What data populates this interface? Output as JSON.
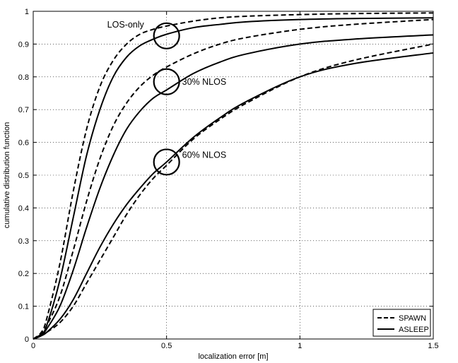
{
  "chart_data": {
    "type": "line",
    "title": "",
    "xlabel": "localization error [m]",
    "ylabel": "cumulative distribution function",
    "xlim": [
      0,
      1.5
    ],
    "ylim": [
      0,
      1
    ],
    "xticks": [
      0,
      0.5,
      1,
      1.5
    ],
    "xtick_labels": [
      "0",
      "0.5",
      "1",
      "1.5"
    ],
    "yticks": [
      0,
      0.1,
      0.2,
      0.3,
      0.4,
      0.5,
      0.6,
      0.7,
      0.8,
      0.9,
      1
    ],
    "ytick_labels": [
      "0",
      "0.1",
      "0.2",
      "0.3",
      "0.4",
      "0.5",
      "0.6",
      "0.7",
      "0.8",
      "0.9",
      "1"
    ],
    "grid": true,
    "legend": {
      "position": "bottom-right",
      "entries": [
        {
          "label": "SPAWN",
          "style": "dashed"
        },
        {
          "label": "ASLEEP",
          "style": "solid"
        }
      ]
    },
    "annotations": [
      {
        "text": "LOS-only",
        "circle_at": [
          0.5,
          0.925
        ]
      },
      {
        "text": "30% NLOS",
        "circle_at": [
          0.5,
          0.785
        ]
      },
      {
        "text": "60% NLOS",
        "circle_at": [
          0.5,
          0.54
        ]
      }
    ],
    "series": [
      {
        "group": "LOS-only",
        "style": "dashed",
        "x": [
          0,
          0.03,
          0.05,
          0.1,
          0.15,
          0.2,
          0.25,
          0.3,
          0.35,
          0.4,
          0.45,
          0.5,
          0.6,
          0.7,
          0.8,
          1.0,
          1.2,
          1.5
        ],
        "y": [
          0,
          0.02,
          0.06,
          0.23,
          0.45,
          0.64,
          0.77,
          0.85,
          0.9,
          0.93,
          0.945,
          0.955,
          0.97,
          0.98,
          0.985,
          0.99,
          0.993,
          0.995
        ]
      },
      {
        "group": "LOS-only",
        "style": "solid",
        "x": [
          0,
          0.03,
          0.05,
          0.1,
          0.15,
          0.2,
          0.25,
          0.3,
          0.35,
          0.4,
          0.45,
          0.5,
          0.6,
          0.7,
          0.8,
          1.0,
          1.2,
          1.5
        ],
        "y": [
          0,
          0.015,
          0.04,
          0.18,
          0.37,
          0.56,
          0.7,
          0.8,
          0.86,
          0.895,
          0.915,
          0.93,
          0.95,
          0.96,
          0.968,
          0.975,
          0.978,
          0.98
        ]
      },
      {
        "group": "30% NLOS",
        "style": "dashed",
        "x": [
          0,
          0.03,
          0.05,
          0.1,
          0.15,
          0.2,
          0.25,
          0.3,
          0.35,
          0.4,
          0.45,
          0.5,
          0.6,
          0.7,
          0.8,
          1.0,
          1.2,
          1.5
        ],
        "y": [
          0,
          0.015,
          0.04,
          0.13,
          0.27,
          0.42,
          0.55,
          0.65,
          0.72,
          0.77,
          0.805,
          0.83,
          0.87,
          0.9,
          0.92,
          0.945,
          0.96,
          0.975
        ]
      },
      {
        "group": "30% NLOS",
        "style": "solid",
        "x": [
          0,
          0.03,
          0.05,
          0.1,
          0.15,
          0.2,
          0.25,
          0.3,
          0.35,
          0.4,
          0.45,
          0.5,
          0.6,
          0.7,
          0.8,
          1.0,
          1.2,
          1.5
        ],
        "y": [
          0,
          0.01,
          0.03,
          0.1,
          0.21,
          0.34,
          0.46,
          0.56,
          0.64,
          0.695,
          0.735,
          0.76,
          0.81,
          0.845,
          0.87,
          0.9,
          0.915,
          0.928
        ]
      },
      {
        "group": "60% NLOS",
        "style": "dashed",
        "x": [
          0,
          0.03,
          0.05,
          0.1,
          0.15,
          0.2,
          0.25,
          0.3,
          0.35,
          0.4,
          0.45,
          0.5,
          0.6,
          0.7,
          0.8,
          1.0,
          1.2,
          1.5
        ],
        "y": [
          0,
          0.01,
          0.02,
          0.05,
          0.1,
          0.17,
          0.24,
          0.31,
          0.38,
          0.44,
          0.49,
          0.53,
          0.61,
          0.67,
          0.72,
          0.8,
          0.85,
          0.9
        ]
      },
      {
        "group": "60% NLOS",
        "style": "solid",
        "x": [
          0,
          0.03,
          0.05,
          0.1,
          0.15,
          0.2,
          0.25,
          0.3,
          0.35,
          0.4,
          0.45,
          0.5,
          0.6,
          0.7,
          0.8,
          1.0,
          1.2,
          1.5
        ],
        "y": [
          0,
          0.01,
          0.02,
          0.06,
          0.12,
          0.2,
          0.28,
          0.35,
          0.41,
          0.46,
          0.505,
          0.54,
          0.615,
          0.675,
          0.725,
          0.8,
          0.84,
          0.873
        ]
      }
    ]
  }
}
